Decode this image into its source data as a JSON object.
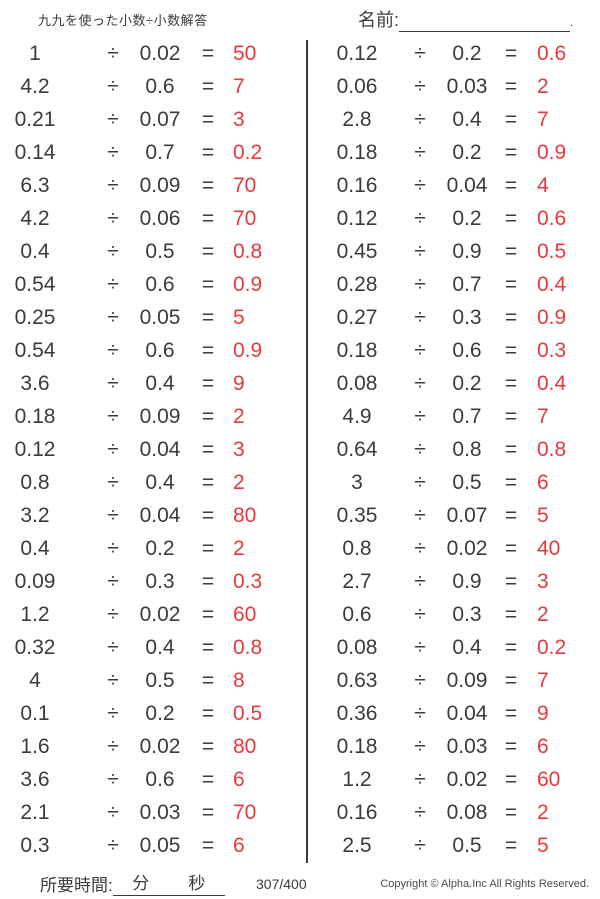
{
  "title": "九九を使った小数÷小数解答",
  "name_label": "名前:",
  "name_line_period": ".",
  "operators": {
    "divide": "÷",
    "equals": "="
  },
  "problems": {
    "left": [
      {
        "dividend": "1",
        "divisor": "0.02",
        "answer": "50"
      },
      {
        "dividend": "4.2",
        "divisor": "0.6",
        "answer": "7"
      },
      {
        "dividend": "0.21",
        "divisor": "0.07",
        "answer": "3"
      },
      {
        "dividend": "0.14",
        "divisor": "0.7",
        "answer": "0.2"
      },
      {
        "dividend": "6.3",
        "divisor": "0.09",
        "answer": "70"
      },
      {
        "dividend": "4.2",
        "divisor": "0.06",
        "answer": "70"
      },
      {
        "dividend": "0.4",
        "divisor": "0.5",
        "answer": "0.8"
      },
      {
        "dividend": "0.54",
        "divisor": "0.6",
        "answer": "0.9"
      },
      {
        "dividend": "0.25",
        "divisor": "0.05",
        "answer": "5"
      },
      {
        "dividend": "0.54",
        "divisor": "0.6",
        "answer": "0.9"
      },
      {
        "dividend": "3.6",
        "divisor": "0.4",
        "answer": "9"
      },
      {
        "dividend": "0.18",
        "divisor": "0.09",
        "answer": "2"
      },
      {
        "dividend": "0.12",
        "divisor": "0.04",
        "answer": "3"
      },
      {
        "dividend": "0.8",
        "divisor": "0.4",
        "answer": "2"
      },
      {
        "dividend": "3.2",
        "divisor": "0.04",
        "answer": "80"
      },
      {
        "dividend": "0.4",
        "divisor": "0.2",
        "answer": "2"
      },
      {
        "dividend": "0.09",
        "divisor": "0.3",
        "answer": "0.3"
      },
      {
        "dividend": "1.2",
        "divisor": "0.02",
        "answer": "60"
      },
      {
        "dividend": "0.32",
        "divisor": "0.4",
        "answer": "0.8"
      },
      {
        "dividend": "4",
        "divisor": "0.5",
        "answer": "8"
      },
      {
        "dividend": "0.1",
        "divisor": "0.2",
        "answer": "0.5"
      },
      {
        "dividend": "1.6",
        "divisor": "0.02",
        "answer": "80"
      },
      {
        "dividend": "3.6",
        "divisor": "0.6",
        "answer": "6"
      },
      {
        "dividend": "2.1",
        "divisor": "0.03",
        "answer": "70"
      },
      {
        "dividend": "0.3",
        "divisor": "0.05",
        "answer": "6"
      }
    ],
    "right": [
      {
        "dividend": "0.12",
        "divisor": "0.2",
        "answer": "0.6"
      },
      {
        "dividend": "0.06",
        "divisor": "0.03",
        "answer": "2"
      },
      {
        "dividend": "2.8",
        "divisor": "0.4",
        "answer": "7"
      },
      {
        "dividend": "0.18",
        "divisor": "0.2",
        "answer": "0.9"
      },
      {
        "dividend": "0.16",
        "divisor": "0.04",
        "answer": "4"
      },
      {
        "dividend": "0.12",
        "divisor": "0.2",
        "answer": "0.6"
      },
      {
        "dividend": "0.45",
        "divisor": "0.9",
        "answer": "0.5"
      },
      {
        "dividend": "0.28",
        "divisor": "0.7",
        "answer": "0.4"
      },
      {
        "dividend": "0.27",
        "divisor": "0.3",
        "answer": "0.9"
      },
      {
        "dividend": "0.18",
        "divisor": "0.6",
        "answer": "0.3"
      },
      {
        "dividend": "0.08",
        "divisor": "0.2",
        "answer": "0.4"
      },
      {
        "dividend": "4.9",
        "divisor": "0.7",
        "answer": "7"
      },
      {
        "dividend": "0.64",
        "divisor": "0.8",
        "answer": "0.8"
      },
      {
        "dividend": "3",
        "divisor": "0.5",
        "answer": "6"
      },
      {
        "dividend": "0.35",
        "divisor": "0.07",
        "answer": "5"
      },
      {
        "dividend": "0.8",
        "divisor": "0.02",
        "answer": "40"
      },
      {
        "dividend": "2.7",
        "divisor": "0.9",
        "answer": "3"
      },
      {
        "dividend": "0.6",
        "divisor": "0.3",
        "answer": "2"
      },
      {
        "dividend": "0.08",
        "divisor": "0.4",
        "answer": "0.2"
      },
      {
        "dividend": "0.63",
        "divisor": "0.09",
        "answer": "7"
      },
      {
        "dividend": "0.36",
        "divisor": "0.04",
        "answer": "9"
      },
      {
        "dividend": "0.18",
        "divisor": "0.03",
        "answer": "6"
      },
      {
        "dividend": "1.2",
        "divisor": "0.02",
        "answer": "60"
      },
      {
        "dividend": "0.16",
        "divisor": "0.08",
        "answer": "2"
      },
      {
        "dividend": "2.5",
        "divisor": "0.5",
        "answer": "5"
      }
    ]
  },
  "footer": {
    "time_label": "所要時間:",
    "minutes_label": "分",
    "seconds_label": "秒",
    "page": "307/400",
    "copyright": "Copyright © Alpha.Inc All Rights Reserved."
  },
  "colors": {
    "answer_red": "#e8383d",
    "text_dark": "#3e3a39"
  }
}
